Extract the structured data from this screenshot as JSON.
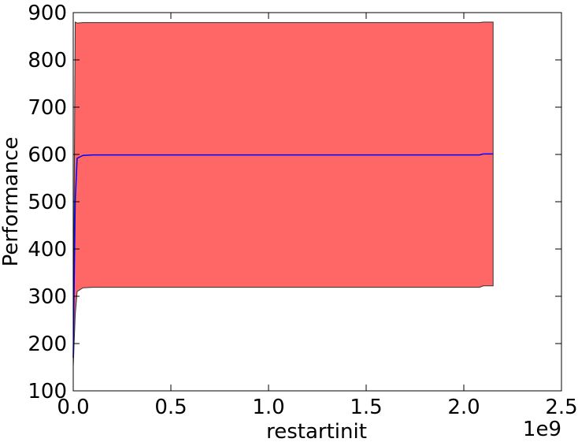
{
  "chart_data": {
    "type": "area",
    "title": "",
    "xlabel": "restartinit",
    "ylabel": "Performance",
    "x_offset_label": "1e9",
    "xlim": [
      0,
      2.5
    ],
    "ylim": [
      100,
      900
    ],
    "x_ticks": [
      0.0,
      0.5,
      1.0,
      1.5,
      2.0,
      2.5
    ],
    "x_tick_labels": [
      "0.0",
      "0.5",
      "1.0",
      "1.5",
      "2.0",
      "2.5"
    ],
    "y_ticks": [
      100,
      200,
      300,
      400,
      500,
      600,
      700,
      800,
      900
    ],
    "y_tick_labels": [
      "100",
      "200",
      "300",
      "400",
      "500",
      "600",
      "700",
      "800",
      "900"
    ],
    "grid": false,
    "series": [
      {
        "role": "mean",
        "x": [
          0.0,
          0.01,
          0.02,
          0.05,
          0.1,
          0.5,
          1.0,
          1.5,
          2.0,
          2.08,
          2.1,
          2.15
        ],
        "y": [
          170,
          500,
          592,
          598,
          599,
          599,
          599,
          599,
          599,
          599,
          601,
          601
        ],
        "color": "#0000ff"
      },
      {
        "role": "band",
        "x": [
          0.0,
          0.01,
          0.02,
          0.05,
          0.1,
          0.5,
          1.0,
          1.5,
          2.0,
          2.08,
          2.1,
          2.15
        ],
        "lower": [
          150,
          260,
          310,
          318,
          319,
          319,
          319,
          319,
          319,
          319,
          322,
          322
        ],
        "upper": [
          150,
          880,
          878,
          879,
          879,
          879,
          879,
          879,
          879,
          879,
          880,
          880
        ],
        "color": "#ff6666"
      }
    ]
  }
}
